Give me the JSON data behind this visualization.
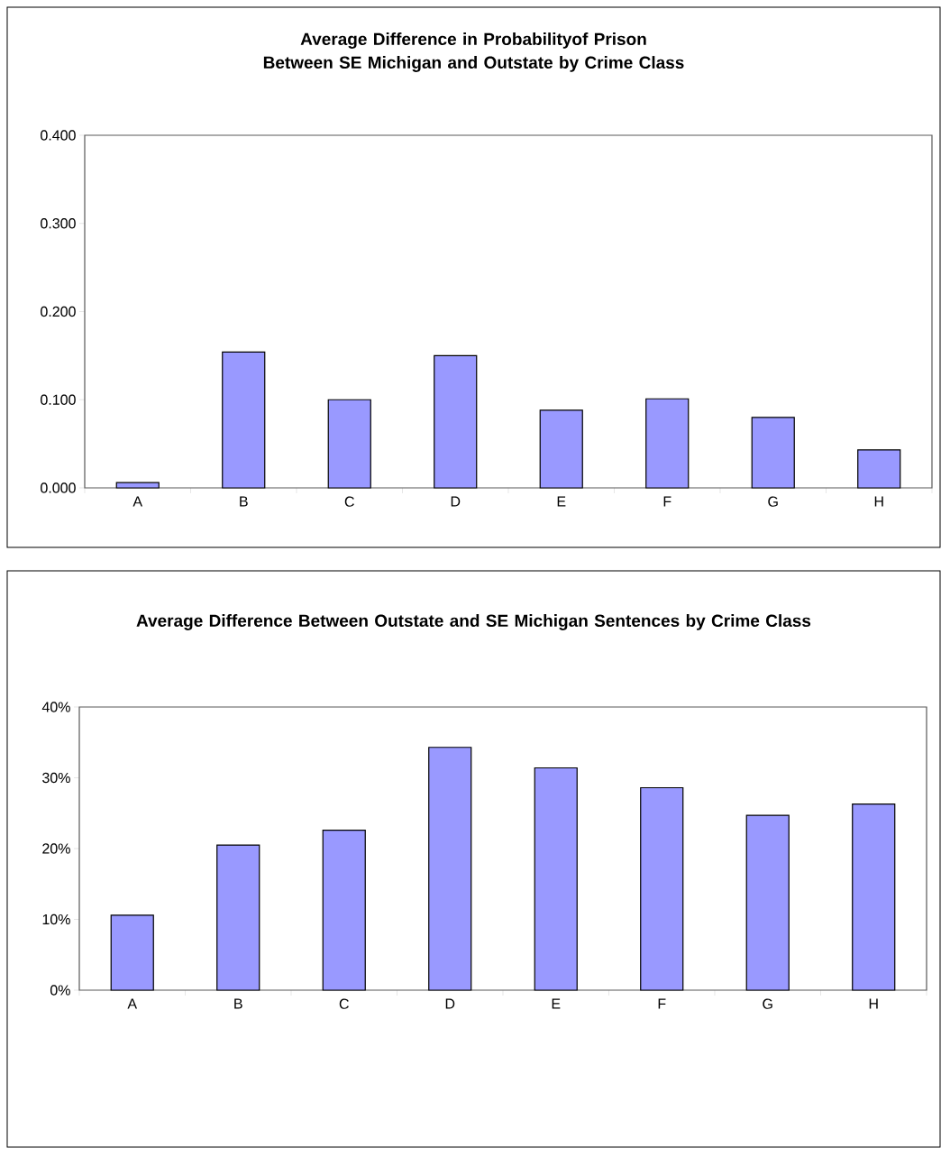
{
  "chart_data": [
    {
      "type": "bar",
      "title": "Average Difference in Probabilityof Prison Between SE Michigan and Outstate by Crime Class",
      "categories": [
        "A",
        "B",
        "C",
        "D",
        "E",
        "F",
        "G",
        "H"
      ],
      "values": [
        0.006,
        0.154,
        0.1,
        0.15,
        0.088,
        0.101,
        0.08,
        0.043
      ],
      "color": "#9999ff",
      "ylim": [
        0,
        0.4
      ],
      "yticks": [
        {
          "value": 0,
          "label": "0.000"
        },
        {
          "value": 0.1,
          "label": "0.100"
        },
        {
          "value": 0.2,
          "label": "0.200"
        },
        {
          "value": 0.3,
          "label": "0.300"
        },
        {
          "value": 0.4,
          "label": "0.400"
        }
      ],
      "grid": false
    },
    {
      "type": "bar",
      "title": "Average Difference Between Outstate and SE Michigan Sentences by Crime Class",
      "categories": [
        "A",
        "B",
        "C",
        "D",
        "E",
        "F",
        "G",
        "H"
      ],
      "values": [
        10.6,
        20.5,
        22.6,
        34.3,
        31.4,
        28.6,
        24.7,
        26.3
      ],
      "color": "#9999ff",
      "ylim": [
        0,
        40
      ],
      "yticks": [
        {
          "value": 0,
          "label": "0%"
        },
        {
          "value": 10,
          "label": "10%"
        },
        {
          "value": 20,
          "label": "20%"
        },
        {
          "value": 30,
          "label": "30%"
        },
        {
          "value": 40,
          "label": "40%"
        }
      ],
      "grid": false
    }
  ]
}
